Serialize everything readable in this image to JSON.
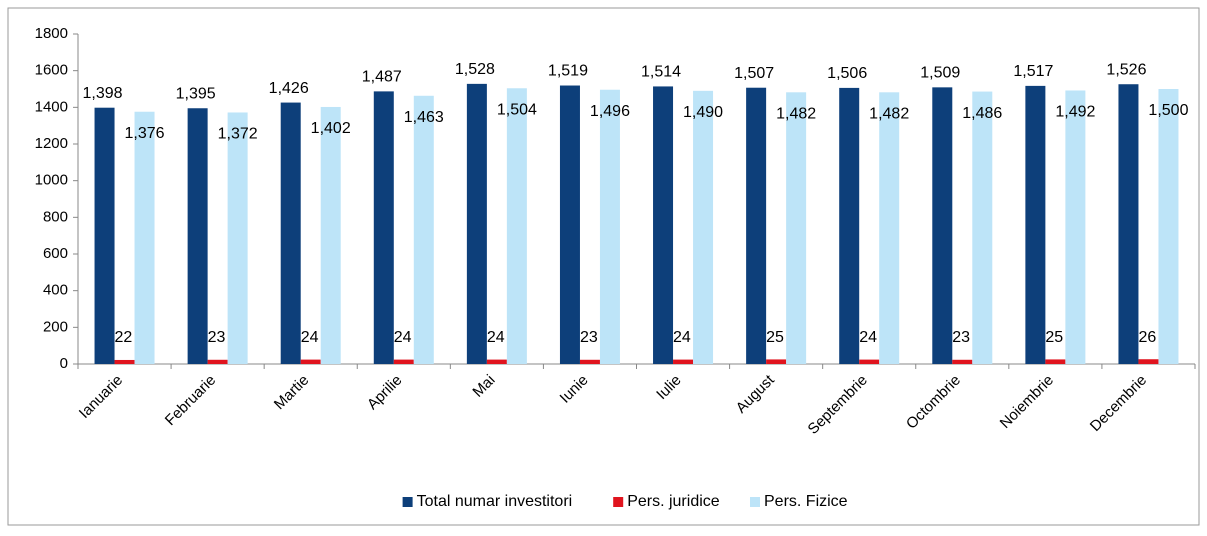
{
  "chart_data": {
    "type": "bar",
    "categories": [
      "Ianuarie",
      "Februarie",
      "Martie",
      "Aprilie",
      "Mai",
      "Iunie",
      "Iulie",
      "August",
      "Septembrie",
      "Octombrie",
      "Noiembrie",
      "Decembrie"
    ],
    "series": [
      {
        "name": "Total numar investitori",
        "color": "#0d3f7a",
        "values": [
          1398,
          1395,
          1426,
          1487,
          1528,
          1519,
          1514,
          1507,
          1506,
          1509,
          1517,
          1526
        ],
        "value_labels": [
          "1,398",
          "1,395",
          "1,426",
          "1,487",
          "1,528",
          "1,519",
          "1,514",
          "1,507",
          "1,506",
          "1,509",
          "1,517",
          "1,526"
        ]
      },
      {
        "name": "Pers. juridice",
        "color": "#e0141e",
        "values": [
          22,
          23,
          24,
          24,
          24,
          23,
          24,
          25,
          24,
          23,
          25,
          26
        ]
      },
      {
        "name": "Pers. Fizice",
        "color": "#bde4f8",
        "values": [
          1376,
          1372,
          1402,
          1463,
          1504,
          1496,
          1490,
          1482,
          1482,
          1486,
          1492,
          1500
        ],
        "value_labels": [
          "1,376",
          "1,372",
          "1,402",
          "1,463",
          "1,504",
          "1,496",
          "1,490",
          "1,482",
          "1,482",
          "1,486",
          "1,492",
          "1,500"
        ]
      }
    ],
    "ylim": [
      0,
      1800
    ],
    "yticks": [
      0,
      200,
      400,
      600,
      800,
      1000,
      1200,
      1400,
      1600,
      1800
    ],
    "grid": false,
    "legend": "bottom"
  }
}
